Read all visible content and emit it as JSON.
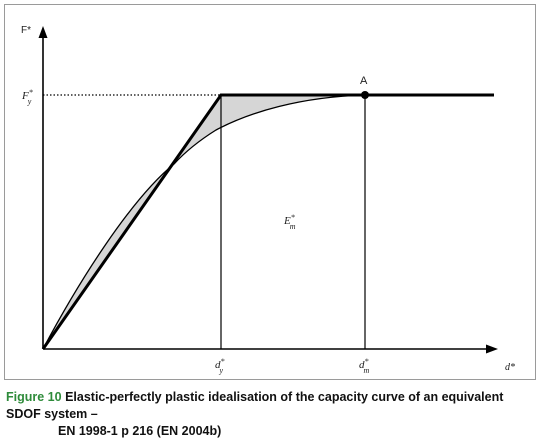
{
  "diagram": {
    "axes": {
      "y": "F*",
      "x": "d*"
    },
    "labels": {
      "fy": "F",
      "fy_sup": "*",
      "fy_sub": "y",
      "dy": "d",
      "dy_sup": "*",
      "dy_sub": "y",
      "dm": "d",
      "dm_sup": "*",
      "dm_sub": "m",
      "em": "E",
      "em_sup": "*",
      "em_sub": "m",
      "point_a": "A"
    }
  },
  "caption": {
    "figure": "Figure 10",
    "text1": "Elastic-perfectly plastic idealisation of the capacity curve of an equivalent SDOF system –",
    "text2": "EN 1998-1 p 216 (EN 2004b)"
  }
}
